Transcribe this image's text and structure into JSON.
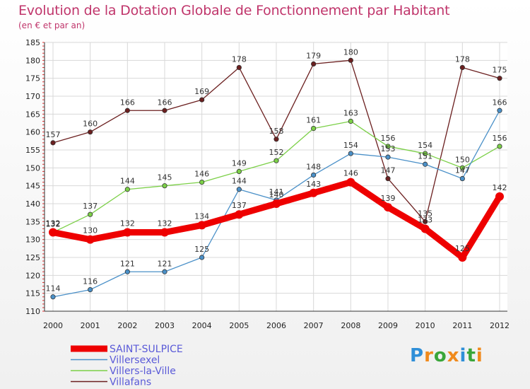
{
  "chart_data": {
    "type": "line",
    "title": "Evolution de la Dotation Globale de Fonctionnement par Habitant",
    "subtitle": "(en € et par an)",
    "x": [
      "2000",
      "2001",
      "2002",
      "2003",
      "2004",
      "2005",
      "2006",
      "2007",
      "2008",
      "2009",
      "2010",
      "2011",
      "2012"
    ],
    "ylim": [
      110,
      185
    ],
    "yticks": [
      110,
      115,
      120,
      125,
      130,
      135,
      140,
      145,
      150,
      155,
      160,
      165,
      170,
      175,
      180,
      185
    ],
    "series": [
      {
        "name": "SAINT-SULPICE",
        "color": "#ee0000",
        "values": [
          132,
          130,
          132,
          132,
          134,
          137,
          140,
          143,
          146,
          139,
          133,
          125,
          142
        ]
      },
      {
        "name": "Villersexel",
        "color": "#4a90c8",
        "values": [
          114,
          116,
          121,
          121,
          125,
          144,
          141,
          148,
          154,
          153,
          151,
          147,
          166
        ]
      },
      {
        "name": "Villers-la-Ville",
        "color": "#7cd048",
        "values": [
          132,
          137,
          144,
          145,
          146,
          149,
          152,
          161,
          163,
          156,
          154,
          150,
          156
        ]
      },
      {
        "name": "Villafans",
        "color": "#6b1f1f",
        "values": [
          157,
          160,
          166,
          166,
          169,
          178,
          158,
          179,
          180,
          147,
          135,
          178,
          175
        ]
      }
    ]
  },
  "brand": {
    "letters": [
      "P",
      "r",
      "o",
      "x",
      "i",
      "t",
      "i"
    ],
    "colors": [
      "#2f8fd8",
      "#f08a1c",
      "#3aa63a",
      "#f08a1c",
      "#2f8fd8",
      "#3aa63a",
      "#f08a1c"
    ]
  }
}
